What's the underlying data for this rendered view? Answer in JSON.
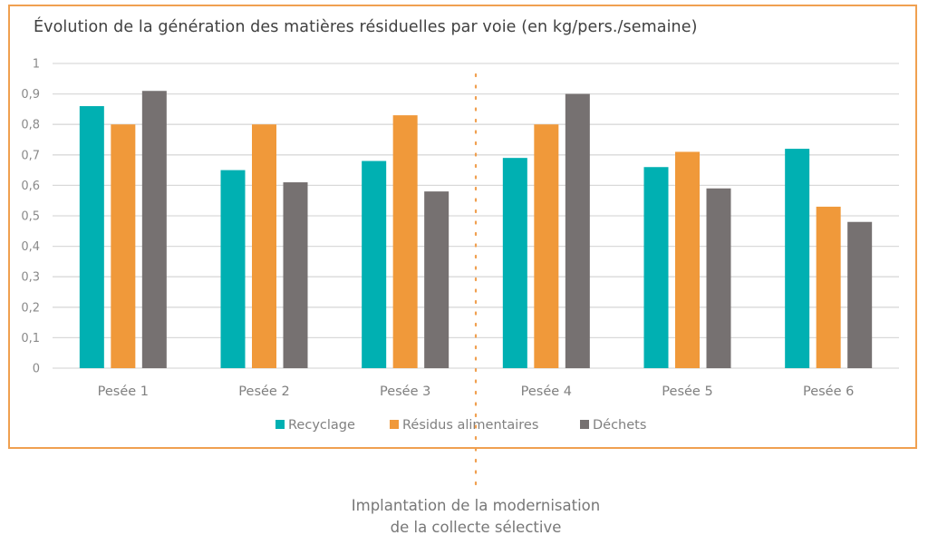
{
  "chart_data": {
    "type": "bar",
    "title": "Évolution de la génération des matières résiduelles par voie (en kg/pers./semaine)",
    "xlabel": "",
    "ylabel": "",
    "ylim": [
      0,
      1
    ],
    "yticks": [
      0,
      0.1,
      0.2,
      0.3,
      0.4,
      0.5,
      0.6,
      0.7,
      0.8,
      0.9,
      1
    ],
    "ytick_labels": [
      "0",
      "0,1",
      "0,2",
      "0,3",
      "0,4",
      "0,5",
      "0,6",
      "0,7",
      "0,8",
      "0,9",
      "1"
    ],
    "grid": true,
    "legend_position": "bottom",
    "categories": [
      "Pesée 1",
      "Pesée 2",
      "Pesée 3",
      "Pesée 4",
      "Pesée 5",
      "Pesée 6"
    ],
    "series": [
      {
        "name": "Recyclage",
        "color": "#00B0B2",
        "values": [
          0.86,
          0.65,
          0.68,
          0.69,
          0.66,
          0.72
        ]
      },
      {
        "name": "Résidus alimentaires",
        "color": "#F0993A",
        "values": [
          0.8,
          0.8,
          0.83,
          0.8,
          0.71,
          0.53
        ]
      },
      {
        "name": "Déchets",
        "color": "#767171",
        "values": [
          0.91,
          0.61,
          0.58,
          0.9,
          0.59,
          0.48
        ]
      }
    ],
    "annotation": {
      "text_line1": "Implantation de la modernisation",
      "text_line2": "de la collecte sélective",
      "divider_between": [
        "Pesée 3",
        "Pesée 4"
      ],
      "divider_color": "#F0A050"
    }
  }
}
